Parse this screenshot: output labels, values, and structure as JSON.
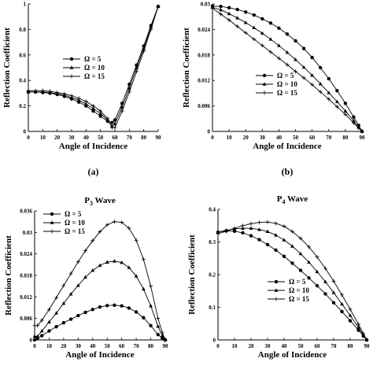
{
  "chart_data": [
    {
      "type": "line",
      "title": "",
      "panel_label": "(a)",
      "xlabel": "Angle of Incidence",
      "ylabel": "Reflection Coefficient",
      "xlim": [
        0,
        90
      ],
      "ylim": [
        0,
        1
      ],
      "xticks": [
        0,
        10,
        20,
        30,
        40,
        50,
        60,
        70,
        80,
        90
      ],
      "yticks": [
        0,
        0.2,
        0.4,
        0.6,
        0.8,
        1
      ],
      "ytick_labels": [
        "0",
        "0.2",
        "0.4",
        "0.6",
        "0.8",
        "1"
      ],
      "legend_position": "middle-right",
      "x": [
        0,
        5,
        10,
        15,
        20,
        25,
        30,
        35,
        40,
        45,
        50,
        55,
        58,
        60,
        65,
        70,
        75,
        80,
        85,
        90
      ],
      "series": [
        {
          "name": "Ω = 5",
          "marker": "circle",
          "values": [
            0.31,
            0.31,
            0.305,
            0.3,
            0.29,
            0.275,
            0.255,
            0.23,
            0.2,
            0.16,
            0.12,
            0.08,
            0.07,
            0.09,
            0.22,
            0.37,
            0.52,
            0.67,
            0.83,
            0.98
          ]
        },
        {
          "name": "Ω = 10",
          "marker": "triangle",
          "values": [
            0.31,
            0.31,
            0.31,
            0.305,
            0.295,
            0.285,
            0.265,
            0.245,
            0.215,
            0.18,
            0.14,
            0.09,
            0.04,
            0.06,
            0.19,
            0.34,
            0.5,
            0.65,
            0.82,
            0.98
          ]
        },
        {
          "name": "Ω = 15",
          "marker": "cross",
          "values": [
            0.32,
            0.32,
            0.32,
            0.315,
            0.305,
            0.295,
            0.28,
            0.26,
            0.235,
            0.2,
            0.16,
            0.1,
            0.03,
            0.03,
            0.16,
            0.31,
            0.47,
            0.63,
            0.8,
            0.98
          ]
        }
      ]
    },
    {
      "type": "line",
      "title": "",
      "panel_label": "(b)",
      "xlabel": "Angle of Incidence",
      "ylabel": "Reflection Coefficient",
      "xlim": [
        0,
        90
      ],
      "ylim": [
        0,
        0.03
      ],
      "xticks": [
        0,
        10,
        20,
        30,
        40,
        50,
        60,
        70,
        80,
        90
      ],
      "yticks": [
        0,
        0.006,
        0.012,
        0.018,
        0.024,
        0.03
      ],
      "ytick_labels": [
        "0",
        "0.006",
        "0.012",
        "0.018",
        "0.024",
        "0.03"
      ],
      "legend_position": "middle-left",
      "x": [
        0,
        5,
        10,
        15,
        20,
        25,
        30,
        35,
        40,
        45,
        50,
        55,
        60,
        65,
        70,
        75,
        80,
        85,
        88,
        90
      ],
      "series": [
        {
          "name": "Ω = 5",
          "marker": "circle",
          "values": [
            0.0295,
            0.0294,
            0.0291,
            0.0287,
            0.0281,
            0.0274,
            0.0265,
            0.0255,
            0.0243,
            0.0229,
            0.0213,
            0.0195,
            0.0174,
            0.015,
            0.0124,
            0.0096,
            0.0066,
            0.0034,
            0.0014,
            0.0
          ]
        },
        {
          "name": "Ω = 10",
          "marker": "triangle",
          "values": [
            0.0292,
            0.0286,
            0.0277,
            0.0267,
            0.0256,
            0.0244,
            0.0231,
            0.0217,
            0.0202,
            0.0186,
            0.0169,
            0.0151,
            0.0132,
            0.0112,
            0.0091,
            0.007,
            0.0048,
            0.0025,
            0.001,
            0.0
          ]
        },
        {
          "name": "Ω = 15",
          "marker": "cross",
          "values": [
            0.029,
            0.0276,
            0.0262,
            0.0247,
            0.0232,
            0.0217,
            0.0202,
            0.0187,
            0.0172,
            0.0157,
            0.0141,
            0.0126,
            0.011,
            0.0093,
            0.0076,
            0.0058,
            0.004,
            0.002,
            0.0008,
            0.0
          ]
        }
      ]
    },
    {
      "type": "line",
      "title": "P",
      "title_subscript": "3",
      "title_suffix": "Wave",
      "panel_label": "",
      "xlabel": "Angle of Incidence",
      "ylabel": "Reflection Coefficient",
      "xlim": [
        0,
        90
      ],
      "ylim": [
        0,
        0.036
      ],
      "xticks": [
        0,
        10,
        20,
        30,
        40,
        50,
        60,
        70,
        80,
        90
      ],
      "yticks": [
        0,
        0.006,
        0.012,
        0.018,
        0.024,
        0.03,
        0.036
      ],
      "ytick_labels": [
        "0",
        "0.006",
        "0.012",
        "0.018",
        "0.024",
        "0.03",
        "0.036"
      ],
      "legend_position": "top-left",
      "x": [
        0,
        2,
        5,
        10,
        15,
        20,
        25,
        30,
        35,
        40,
        45,
        50,
        55,
        60,
        65,
        70,
        75,
        80,
        85,
        88,
        90
      ],
      "series": [
        {
          "name": "Ω = 5",
          "marker": "circle",
          "values": [
            0.0,
            0.0005,
            0.0012,
            0.0025,
            0.0037,
            0.0048,
            0.0058,
            0.0068,
            0.0077,
            0.0085,
            0.0092,
            0.0096,
            0.0097,
            0.0095,
            0.0089,
            0.0078,
            0.0062,
            0.004,
            0.0015,
            0.0005,
            0.0
          ]
        },
        {
          "name": "Ω = 10",
          "marker": "triangle",
          "values": [
            0.001,
            0.001,
            0.0025,
            0.005,
            0.0075,
            0.0102,
            0.0128,
            0.0152,
            0.0175,
            0.0194,
            0.0208,
            0.0217,
            0.022,
            0.0216,
            0.0202,
            0.0178,
            0.0142,
            0.0095,
            0.0038,
            0.0012,
            0.0
          ]
        },
        {
          "name": "Ω = 15",
          "marker": "cross",
          "values": [
            0.004,
            0.004,
            0.0055,
            0.0085,
            0.0118,
            0.0152,
            0.0185,
            0.0218,
            0.0249,
            0.0277,
            0.0302,
            0.0321,
            0.033,
            0.0328,
            0.0312,
            0.0278,
            0.0225,
            0.015,
            0.006,
            0.002,
            0.0
          ]
        }
      ]
    },
    {
      "type": "line",
      "title": "P",
      "title_subscript": "4",
      "title_suffix": "Wave",
      "panel_label": "",
      "xlabel": "Angle of Incidence",
      "ylabel": "Reflection Coefficient",
      "xlim": [
        0,
        90
      ],
      "ylim": [
        0,
        0.4
      ],
      "xticks": [
        0,
        10,
        20,
        30,
        40,
        50,
        60,
        70,
        80,
        90
      ],
      "yticks": [
        0,
        0.1,
        0.2,
        0.3,
        0.4
      ],
      "ytick_labels": [
        "0",
        "0.1",
        "0.2",
        "0.3",
        "0.4"
      ],
      "legend_position": "bottom-left",
      "x": [
        0,
        5,
        10,
        15,
        20,
        25,
        30,
        35,
        40,
        45,
        50,
        55,
        60,
        65,
        70,
        75,
        80,
        85,
        88,
        90
      ],
      "series": [
        {
          "name": "Ω = 5",
          "marker": "circle",
          "values": [
            0.33,
            0.334,
            0.333,
            0.328,
            0.319,
            0.307,
            0.292,
            0.275,
            0.256,
            0.235,
            0.213,
            0.19,
            0.166,
            0.141,
            0.114,
            0.087,
            0.059,
            0.03,
            0.012,
            0.0
          ]
        },
        {
          "name": "Ω = 10",
          "marker": "triangle",
          "values": [
            0.33,
            0.336,
            0.34,
            0.342,
            0.342,
            0.338,
            0.332,
            0.321,
            0.306,
            0.287,
            0.264,
            0.238,
            0.209,
            0.178,
            0.145,
            0.11,
            0.075,
            0.038,
            0.015,
            0.0
          ]
        },
        {
          "name": "Ω = 15",
          "marker": "cross",
          "values": [
            0.325,
            0.333,
            0.342,
            0.35,
            0.356,
            0.36,
            0.361,
            0.357,
            0.348,
            0.332,
            0.311,
            0.285,
            0.254,
            0.219,
            0.18,
            0.138,
            0.094,
            0.048,
            0.019,
            0.0
          ]
        }
      ]
    }
  ]
}
